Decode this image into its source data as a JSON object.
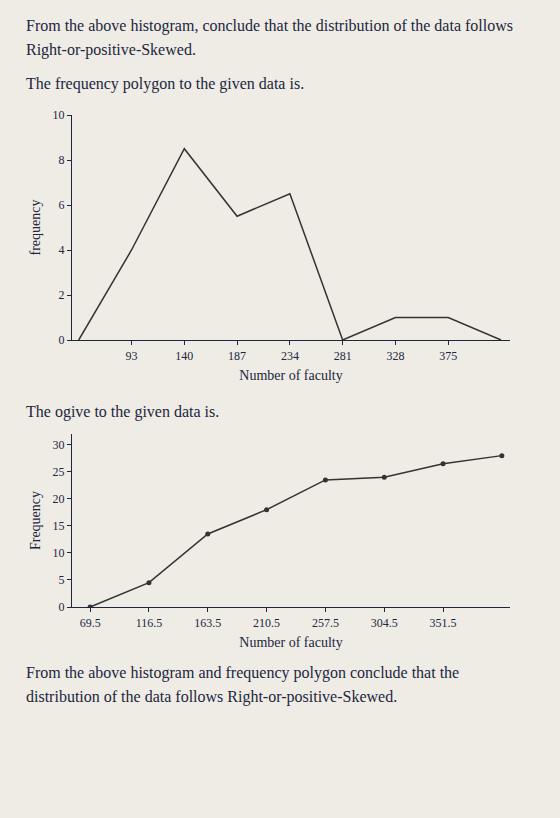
{
  "text": {
    "top_note": "From the above histogram, conclude that the distribution of the data follows Right-or-positive-Skewed.",
    "polygon_caption": "The frequency polygon to the given data is.",
    "ogive_caption": "The ogive to the given data is.",
    "bottom_note": "From the above histogram and frequency polygon conclude that the distribution of the data follows Right-or-positive-Skewed."
  },
  "chart_data": [
    {
      "type": "line",
      "x_label": "Number of faculty",
      "y_label": "frequency",
      "x": [
        46,
        93,
        140,
        187,
        234,
        281,
        328,
        375,
        422
      ],
      "values": [
        0,
        4,
        8.5,
        5.5,
        6.5,
        0,
        1,
        1,
        0
      ],
      "color": "#333333",
      "xlim": [
        40,
        430
      ],
      "xticks": [
        93,
        140,
        187,
        234,
        281,
        328,
        375
      ],
      "ylim": [
        0,
        10
      ],
      "yticks": [
        0,
        2,
        4,
        6,
        8,
        10
      ],
      "grid": false
    },
    {
      "type": "line",
      "x_label": "Number of faculty",
      "y_label": "Frequency",
      "x": [
        69.5,
        116.5,
        163.5,
        210.5,
        257.5,
        304.5,
        351.5,
        398.5
      ],
      "values": [
        0,
        4.5,
        13.5,
        18,
        23.5,
        24,
        26.5,
        28
      ],
      "color": "#333333",
      "marker": "circle",
      "xlim": [
        55,
        405
      ],
      "xticks": [
        69.5,
        116.5,
        163.5,
        210.5,
        257.5,
        304.5,
        351.5
      ],
      "ylim": [
        0,
        32
      ],
      "yticks": [
        0,
        5,
        10,
        15,
        20,
        25,
        30
      ],
      "grid": false
    }
  ]
}
